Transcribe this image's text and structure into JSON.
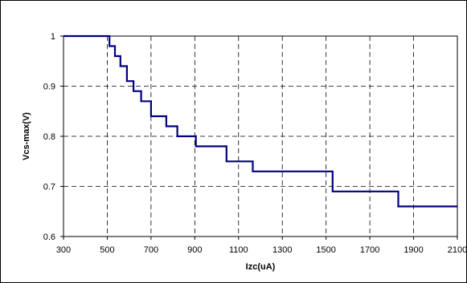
{
  "chart_data": {
    "type": "line",
    "step": true,
    "xlabel": "Izc(uA)",
    "ylabel": "Vcs-max(V)",
    "xlim": [
      300,
      2100
    ],
    "ylim": [
      0.6,
      1.0
    ],
    "x_ticks": [
      300,
      500,
      700,
      900,
      1100,
      1300,
      1500,
      1700,
      1900,
      2100
    ],
    "y_ticks": [
      0.6,
      0.7,
      0.8,
      0.9,
      1
    ],
    "grid": true,
    "grid_style": "dashed",
    "series": [
      {
        "color": "#000080",
        "points": [
          [
            300,
            1.0
          ],
          [
            510,
            1.0
          ],
          [
            510,
            0.98
          ],
          [
            535,
            0.98
          ],
          [
            535,
            0.96
          ],
          [
            560,
            0.96
          ],
          [
            560,
            0.94
          ],
          [
            590,
            0.94
          ],
          [
            590,
            0.91
          ],
          [
            620,
            0.91
          ],
          [
            620,
            0.89
          ],
          [
            655,
            0.89
          ],
          [
            655,
            0.87
          ],
          [
            700,
            0.87
          ],
          [
            700,
            0.84
          ],
          [
            770,
            0.84
          ],
          [
            770,
            0.82
          ],
          [
            820,
            0.82
          ],
          [
            820,
            0.8
          ],
          [
            905,
            0.8
          ],
          [
            905,
            0.78
          ],
          [
            1045,
            0.78
          ],
          [
            1045,
            0.75
          ],
          [
            1165,
            0.75
          ],
          [
            1165,
            0.73
          ],
          [
            1530,
            0.73
          ],
          [
            1530,
            0.69
          ],
          [
            1830,
            0.69
          ],
          [
            1830,
            0.66
          ],
          [
            2100,
            0.66
          ]
        ]
      }
    ]
  }
}
